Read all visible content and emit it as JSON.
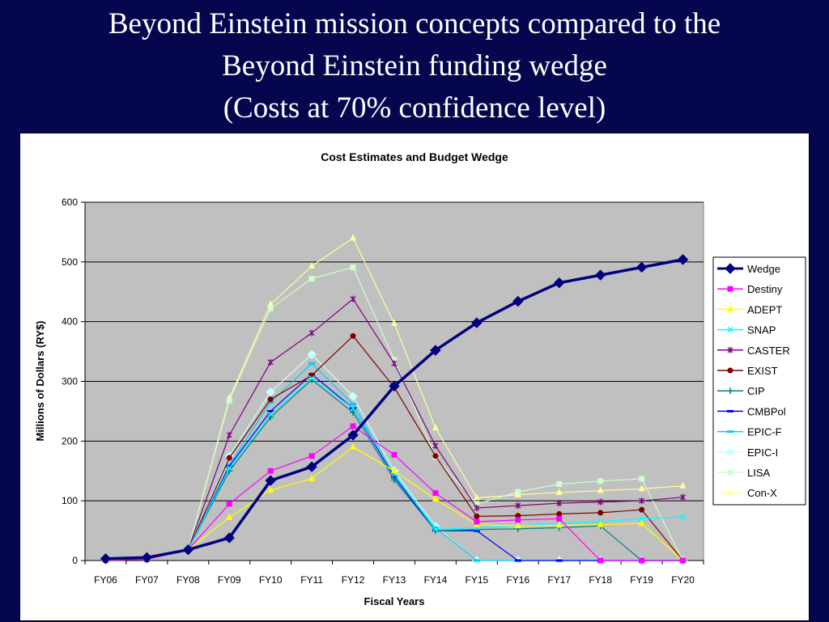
{
  "slide": {
    "title_line1": "Beyond Einstein mission concepts compared to the",
    "title_line2": "Beyond Einstein funding wedge",
    "title_line3": "(Costs at 70% confidence level)",
    "background_color": "#06064f"
  },
  "chart_data": {
    "type": "line",
    "title": "Cost Estimates and Budget Wedge",
    "xlabel": "Fiscal Years",
    "ylabel": "Millions of Dollars (RY$)",
    "ylim": [
      0,
      600
    ],
    "yticks": [
      0,
      100,
      200,
      300,
      400,
      500,
      600
    ],
    "grid": true,
    "plot_background": "#c0c0c0",
    "legend_position": "right",
    "categories": [
      "FY06",
      "FY07",
      "FY08",
      "FY09",
      "FY10",
      "FY11",
      "FY12",
      "FY13",
      "FY14",
      "FY15",
      "FY16",
      "FY17",
      "FY18",
      "FY19",
      "FY20"
    ],
    "series": [
      {
        "name": "Wedge",
        "color": "#000080",
        "marker": "diamond",
        "values": [
          3,
          5,
          18,
          38,
          134,
          157,
          210,
          292,
          352,
          398,
          434,
          465,
          478,
          491,
          504
        ]
      },
      {
        "name": "Destiny",
        "color": "#ff00ff",
        "marker": "square",
        "values": [
          1,
          2,
          18,
          95,
          150,
          175,
          225,
          177,
          113,
          65,
          68,
          70,
          0,
          0,
          0
        ]
      },
      {
        "name": "ADEPT",
        "color": "#ffff00",
        "marker": "triangle",
        "values": [
          1,
          2,
          18,
          72,
          118,
          137,
          190,
          150,
          103,
          60,
          58,
          59,
          60,
          62,
          0
        ]
      },
      {
        "name": "SNAP",
        "color": "#00ffff",
        "marker": "x",
        "values": [
          1,
          2,
          18,
          155,
          245,
          305,
          255,
          145,
          52,
          55,
          58,
          62,
          65,
          70,
          73
        ]
      },
      {
        "name": "CASTER",
        "color": "#800080",
        "marker": "star",
        "values": [
          1,
          2,
          18,
          210,
          332,
          381,
          438,
          330,
          192,
          88,
          92,
          96,
          98,
          100,
          106
        ]
      },
      {
        "name": "EXIST",
        "color": "#800000",
        "marker": "circle",
        "values": [
          1,
          2,
          18,
          172,
          270,
          310,
          376,
          290,
          175,
          74,
          75,
          78,
          80,
          85,
          0
        ]
      },
      {
        "name": "CIP",
        "color": "#008080",
        "marker": "plus",
        "values": [
          1,
          2,
          18,
          150,
          240,
          303,
          248,
          135,
          50,
          52,
          53,
          55,
          58,
          0,
          0
        ]
      },
      {
        "name": "CMBPol",
        "color": "#0000ff",
        "marker": "dash",
        "values": [
          1,
          2,
          18,
          158,
          250,
          312,
          255,
          140,
          50,
          50,
          0,
          0,
          0,
          0,
          0
        ]
      },
      {
        "name": "EPIC-F",
        "color": "#00ccff",
        "marker": "dash",
        "values": [
          1,
          2,
          18,
          160,
          265,
          330,
          262,
          142,
          55,
          0,
          0,
          0,
          0,
          0,
          0
        ]
      },
      {
        "name": "EPIC-I",
        "color": "#ccffff",
        "marker": "diamond",
        "values": [
          1,
          2,
          18,
          175,
          282,
          345,
          275,
          150,
          57,
          0,
          0,
          0,
          0,
          0,
          0
        ]
      },
      {
        "name": "LISA",
        "color": "#ccffcc",
        "marker": "square",
        "values": [
          1,
          2,
          18,
          268,
          422,
          472,
          491,
          336,
          173,
          95,
          115,
          128,
          133,
          137,
          0
        ]
      },
      {
        "name": "Con-X",
        "color": "#ffff99",
        "marker": "triangle",
        "values": [
          1,
          2,
          18,
          272,
          429,
          493,
          540,
          397,
          222,
          105,
          110,
          114,
          117,
          120,
          125
        ]
      }
    ]
  }
}
